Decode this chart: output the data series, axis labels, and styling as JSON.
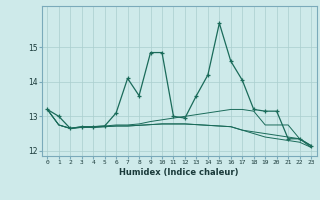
{
  "title": "",
  "xlabel": "Humidex (Indice chaleur)",
  "ylabel": "",
  "xlim": [
    -0.5,
    23.5
  ],
  "ylim": [
    11.85,
    16.2
  ],
  "yticks": [
    12,
    13,
    14,
    15
  ],
  "xticks": [
    0,
    1,
    2,
    3,
    4,
    5,
    6,
    7,
    8,
    9,
    10,
    11,
    12,
    13,
    14,
    15,
    16,
    17,
    18,
    19,
    20,
    21,
    22,
    23
  ],
  "background_color": "#ceeaea",
  "grid_color": "#aacece",
  "line_color": "#1a6b5a",
  "series": [
    [
      13.2,
      13.0,
      12.65,
      12.7,
      12.7,
      12.72,
      13.1,
      14.1,
      13.6,
      14.85,
      14.85,
      13.0,
      12.95,
      13.6,
      14.2,
      15.7,
      14.6,
      14.05,
      13.2,
      13.15,
      13.15,
      12.35,
      12.35,
      12.15
    ],
    [
      13.2,
      12.75,
      12.65,
      12.7,
      12.7,
      12.72,
      12.75,
      12.75,
      12.78,
      12.85,
      12.9,
      12.95,
      13.0,
      13.05,
      13.1,
      13.15,
      13.2,
      13.2,
      13.15,
      12.75,
      12.75,
      12.75,
      12.35,
      12.1
    ],
    [
      13.2,
      12.75,
      12.65,
      12.68,
      12.68,
      12.7,
      12.72,
      12.72,
      12.74,
      12.76,
      12.78,
      12.78,
      12.78,
      12.76,
      12.74,
      12.72,
      12.7,
      12.6,
      12.55,
      12.5,
      12.45,
      12.4,
      12.35,
      12.15
    ],
    [
      13.2,
      12.75,
      12.65,
      12.68,
      12.68,
      12.7,
      12.72,
      12.72,
      12.74,
      12.76,
      12.78,
      12.78,
      12.78,
      12.76,
      12.74,
      12.72,
      12.7,
      12.6,
      12.5,
      12.4,
      12.35,
      12.3,
      12.25,
      12.1
    ]
  ]
}
